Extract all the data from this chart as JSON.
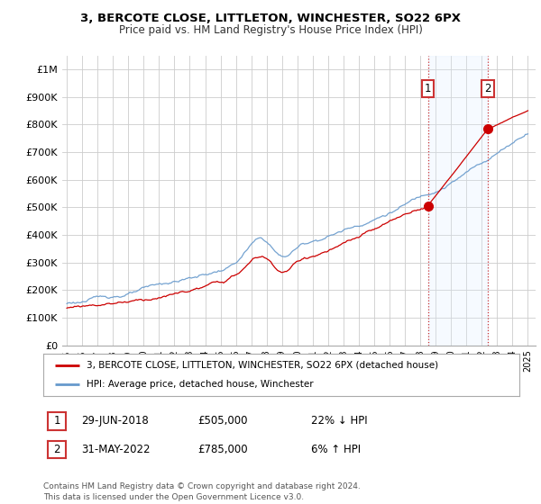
{
  "title": "3, BERCOTE CLOSE, LITTLETON, WINCHESTER, SO22 6PX",
  "subtitle": "Price paid vs. HM Land Registry's House Price Index (HPI)",
  "ylabel_ticks": [
    "£0",
    "£100K",
    "£200K",
    "£300K",
    "£400K",
    "£500K",
    "£600K",
    "£700K",
    "£800K",
    "£900K",
    "£1M"
  ],
  "ytick_values": [
    0,
    100000,
    200000,
    300000,
    400000,
    500000,
    600000,
    700000,
    800000,
    900000,
    1000000
  ],
  "ylim": [
    0,
    1050000
  ],
  "hpi_color": "#6699cc",
  "property_color": "#cc0000",
  "sale1_year": 2018.5,
  "sale1_price": 505000,
  "sale2_year": 2022.4,
  "sale2_price": 785000,
  "legend_label1": "3, BERCOTE CLOSE, LITTLETON, WINCHESTER, SO22 6PX (detached house)",
  "legend_label2": "HPI: Average price, detached house, Winchester",
  "annotation1_date": "29-JUN-2018",
  "annotation1_price": "£505,000",
  "annotation1_hpi": "22% ↓ HPI",
  "annotation2_date": "31-MAY-2022",
  "annotation2_price": "£785,000",
  "annotation2_hpi": "6% ↑ HPI",
  "footer": "Contains HM Land Registry data © Crown copyright and database right 2024.\nThis data is licensed under the Open Government Licence v3.0.",
  "bg_color": "#ffffff",
  "grid_color": "#cccccc",
  "shade_color": "#ddeeff"
}
